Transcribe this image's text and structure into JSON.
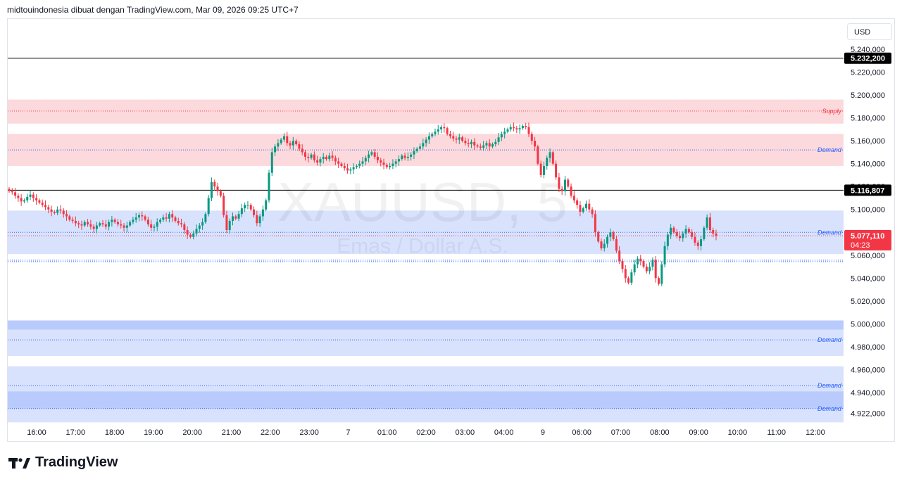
{
  "header": {
    "attribution": "midtouindonesia dibuat dengan TradingView.com, Mar 09, 2026 09:25 UTC+7"
  },
  "footer": {
    "brand": "TradingView"
  },
  "currency": "USD",
  "colors": {
    "up": "#089981",
    "down": "#f23645",
    "supply_zone": "#fcd9dc",
    "demand_zone": "#d8e2fd",
    "demand_zone_dark": "#b9cbfc",
    "supply_label": "#f23645",
    "demand_label": "#2962ff"
  },
  "chart_data": {
    "type": "candlestick",
    "symbol_watermark": "XAUUSD, 5",
    "subtitle_watermark": "Emas / Dollar A.S.",
    "ylim": [
      4912000,
      5250000
    ],
    "y_ticks": [
      "5.240,000",
      "5.220,000",
      "5.200,000",
      "5.180,000",
      "5.160,000",
      "5.140,000",
      "5.120,000",
      "5.100,000",
      "5.080,000",
      "5.060,000",
      "5.040,000",
      "5.020,000",
      "5.000,000",
      "4.980,000",
      "4.960,000",
      "4.940,000",
      "4.922,000"
    ],
    "x_ticks": [
      "16:00",
      "17:00",
      "18:00",
      "19:00",
      "20:00",
      "21:00",
      "22:00",
      "23:00",
      "7",
      "01:00",
      "02:00",
      "03:00",
      "04:00",
      "9",
      "06:00",
      "07:00",
      "08:00",
      "09:00",
      "10:00",
      "11:00",
      "12:00"
    ],
    "price_labels": [
      {
        "value": "5.232,200",
        "style": "black"
      },
      {
        "value": "5.116,807",
        "style": "black"
      },
      {
        "value": "5.077,110",
        "countdown": "04:23",
        "style": "red"
      }
    ],
    "horizontal_lines": [
      {
        "price": 5232200,
        "color": "#000000"
      },
      {
        "price": 5116807,
        "color": "#000000"
      }
    ],
    "zones": [
      {
        "label": "Supply",
        "top": 5196000,
        "bottom": 5175000,
        "mid": 5186000,
        "kind": "supply"
      },
      {
        "label": "Demand",
        "top": 5166000,
        "bottom": 5138000,
        "mid": 5152000,
        "kind": "supply"
      },
      {
        "label": "Demand",
        "top": 5099000,
        "bottom": 5061000,
        "mid": 5080000,
        "kind": "demand"
      },
      {
        "label": "",
        "top": 5056000,
        "bottom": 5054000,
        "mid": 5055000,
        "kind": "line"
      },
      {
        "label": "Demand",
        "top": 5003000,
        "bottom": 4972000,
        "mid": 4986000,
        "kind": "demand",
        "band_top": 5003000,
        "band_bottom": 4995000
      },
      {
        "label": "Demand",
        "top": 4963000,
        "bottom": 4914000,
        "mid": 4946000,
        "kind": "demand"
      },
      {
        "label": "Demand",
        "top": 4941000,
        "bottom": 4926000,
        "mid": 4926000,
        "kind": "demand_dark"
      }
    ],
    "closes": [
      5116000,
      5115000,
      5112000,
      5110000,
      5107000,
      5108000,
      5111000,
      5113000,
      5110000,
      5108000,
      5106000,
      5104000,
      5102000,
      5100000,
      5098000,
      5097000,
      5100000,
      5099000,
      5096000,
      5094000,
      5091000,
      5090000,
      5088000,
      5087000,
      5086000,
      5089000,
      5087000,
      5085000,
      5083000,
      5086000,
      5088000,
      5087000,
      5085000,
      5089000,
      5091000,
      5089000,
      5087000,
      5086000,
      5084000,
      5086000,
      5089000,
      5091000,
      5093000,
      5095000,
      5094000,
      5091000,
      5087000,
      5084000,
      5085000,
      5089000,
      5091000,
      5093000,
      5092000,
      5096000,
      5093000,
      5090000,
      5088000,
      5087000,
      5082000,
      5078000,
      5076000,
      5079000,
      5083000,
      5086000,
      5089000,
      5096000,
      5110000,
      5124000,
      5120000,
      5116000,
      5112000,
      5095000,
      5082000,
      5090000,
      5094000,
      5092000,
      5096000,
      5101000,
      5104000,
      5104000,
      5100000,
      5095000,
      5088000,
      5094000,
      5100000,
      5108000,
      5132000,
      5150000,
      5155000,
      5158000,
      5161000,
      5164000,
      5158000,
      5156000,
      5160000,
      5157000,
      5153000,
      5150000,
      5146000,
      5145000,
      5148000,
      5143000,
      5141000,
      5144000,
      5146000,
      5144000,
      5147000,
      5145000,
      5142000,
      5140000,
      5138000,
      5136000,
      5134000,
      5135000,
      5137000,
      5138000,
      5140000,
      5142000,
      5145000,
      5148000,
      5150000,
      5146000,
      5143000,
      5141000,
      5139000,
      5137000,
      5138000,
      5140000,
      5142000,
      5144000,
      5147000,
      5145000,
      5146000,
      5148000,
      5151000,
      5153000,
      5155000,
      5158000,
      5161000,
      5164000,
      5166000,
      5168000,
      5170000,
      5172000,
      5171000,
      5166000,
      5164000,
      5162000,
      5161000,
      5163000,
      5160000,
      5158000,
      5157000,
      5159000,
      5156000,
      5155000,
      5154000,
      5156000,
      5158000,
      5155000,
      5157000,
      5159000,
      5163000,
      5166000,
      5168000,
      5170000,
      5172000,
      5171000,
      5170000,
      5171000,
      5173000,
      5172000,
      5166000,
      5160000,
      5155000,
      5140000,
      5130000,
      5138000,
      5145000,
      5150000,
      5140000,
      5128000,
      5118000,
      5116000,
      5126000,
      5120000,
      5112000,
      5108000,
      5104000,
      5098000,
      5101000,
      5105000,
      5100000,
      5096000,
      5080000,
      5072000,
      5066000,
      5070000,
      5076000,
      5080000,
      5074000,
      5064000,
      5055000,
      5048000,
      5040000,
      5036000,
      5045000,
      5052000,
      5057000,
      5055000,
      5050000,
      5046000,
      5050000,
      5056000,
      5040000,
      5035000,
      5052000,
      5068000,
      5078000,
      5084000,
      5080000,
      5077000,
      5075000,
      5079000,
      5083000,
      5080000,
      5076000,
      5071000,
      5068000,
      5074000,
      5084000,
      5093000,
      5082000,
      5079000,
      5077000
    ],
    "highs_lows_note": "wick extents approximate"
  }
}
